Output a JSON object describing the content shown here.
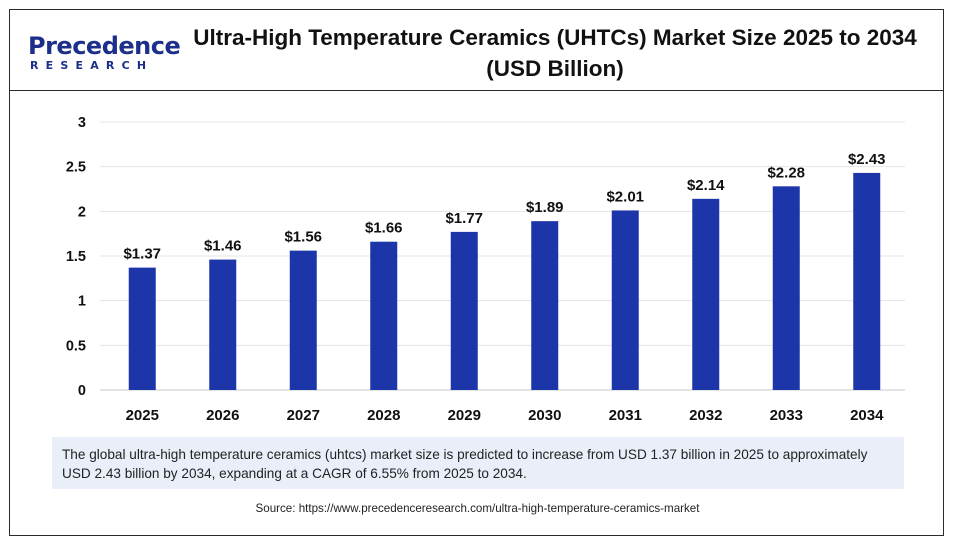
{
  "header": {
    "logo_word": "Precedence",
    "logo_sub": "RESEARCH",
    "title": "Ultra-High Temperature Ceramics (UHTCs) Market Size 2025 to 2034 (USD Billion)"
  },
  "chart_data": {
    "type": "bar",
    "title": "Ultra-High Temperature Ceramics (UHTCs) Market Size 2025 to 2034 (USD Billion)",
    "xlabel": "",
    "ylabel": "",
    "categories": [
      "2025",
      "2026",
      "2027",
      "2028",
      "2029",
      "2030",
      "2031",
      "2032",
      "2033",
      "2034"
    ],
    "values": [
      1.37,
      1.46,
      1.56,
      1.66,
      1.77,
      1.89,
      2.01,
      2.14,
      2.28,
      2.43
    ],
    "value_labels": [
      "$1.37",
      "$1.46",
      "$1.56",
      "$1.66",
      "$1.77",
      "$1.89",
      "$2.01",
      "$2.14",
      "$2.28",
      "$2.43"
    ],
    "ylim": [
      0,
      3
    ],
    "yticks": [
      "0",
      "0.5",
      "1",
      "1.5",
      "2",
      "2.5",
      "3"
    ],
    "grid": true,
    "legend": "none",
    "bar_color": "#1c35a8"
  },
  "note": {
    "text": "The global ultra-high temperature ceramics (uhtcs) market size is predicted to increase from USD 1.37 billion in 2025 to approximately USD 2.43 billion by 2034, expanding at a CAGR of 6.55% from 2025 to 2034."
  },
  "source": {
    "text": "Source: https://www.precedenceresearch.com/ultra-high-temperature-ceramics-market"
  }
}
